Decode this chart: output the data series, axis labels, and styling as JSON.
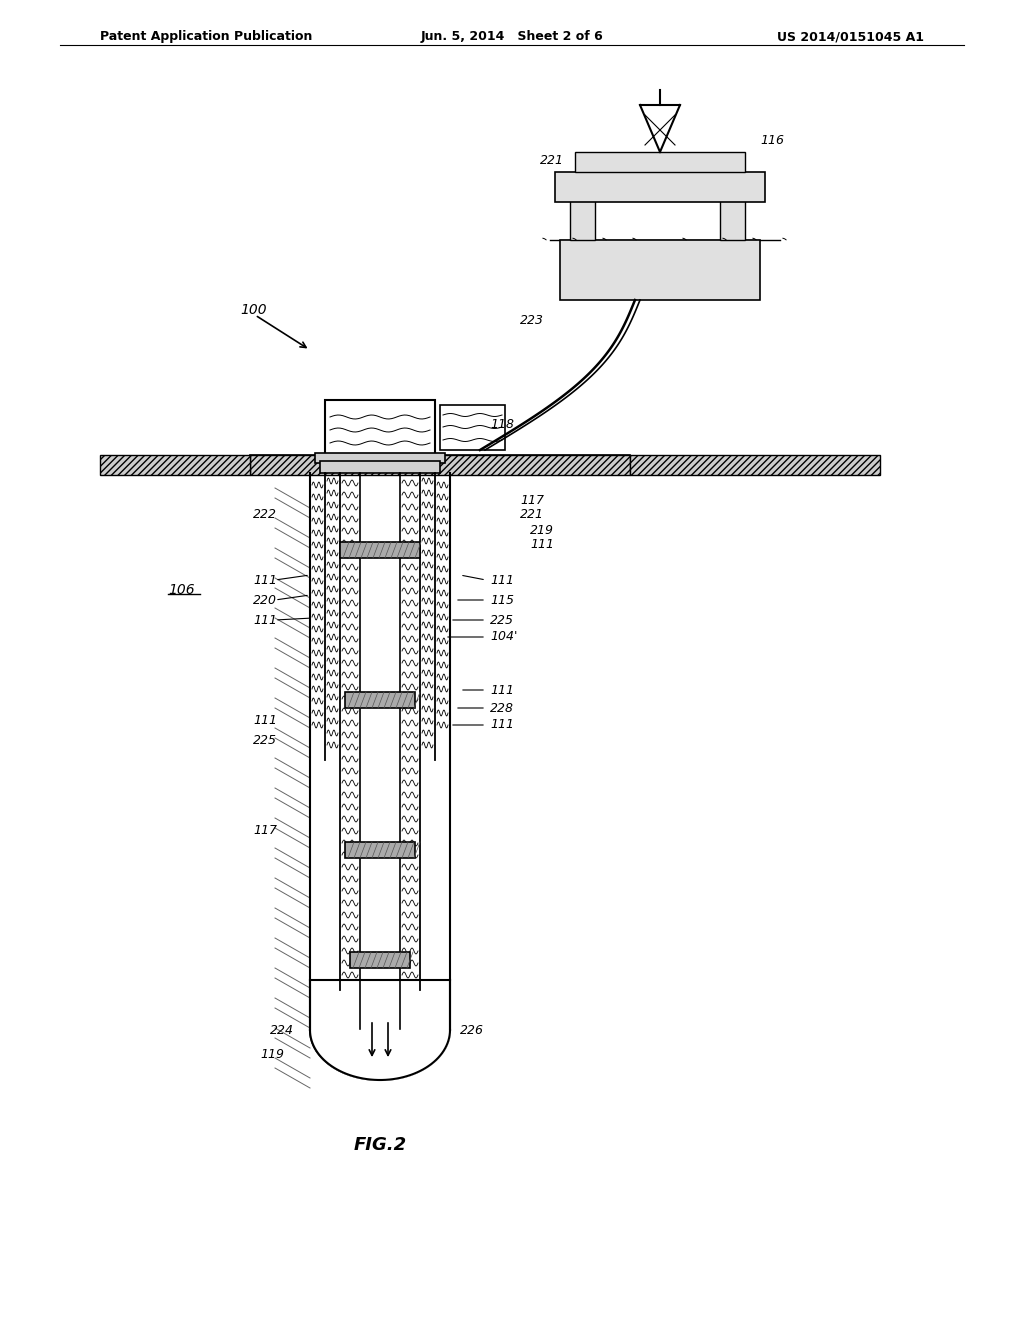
{
  "bg_color": "#ffffff",
  "header_left": "Patent Application Publication",
  "header_mid": "Jun. 5, 2014   Sheet 2 of 6",
  "header_right": "US 2014/0151045 A1",
  "fig_label": "FIG.2",
  "title_fontsize": 10,
  "fig_label_fontsize": 13
}
